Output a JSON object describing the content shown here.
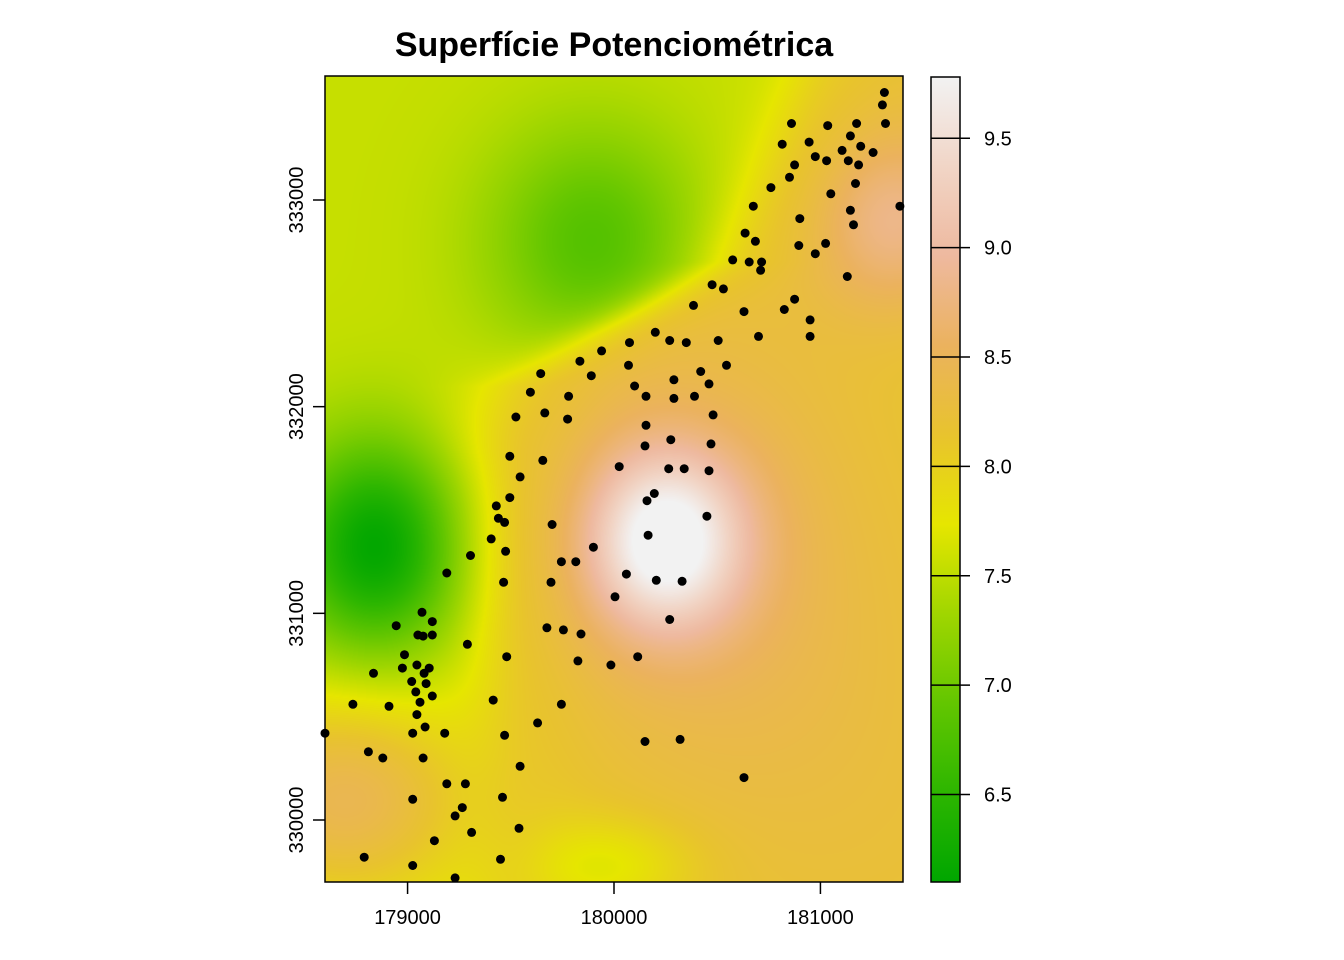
{
  "chart_data": {
    "type": "heatmap",
    "title": "Superfície Potenciométrica",
    "xlabel": "",
    "ylabel": "",
    "x_range": [
      178600,
      181400
    ],
    "y_range": [
      329700,
      333600
    ],
    "x_ticks": [
      179000,
      180000,
      181000
    ],
    "x_tick_labels": [
      "179000",
      "180000",
      "181000"
    ],
    "y_ticks": [
      330000,
      331000,
      332000,
      333000
    ],
    "y_tick_labels": [
      "330000",
      "331000",
      "332000",
      "333000"
    ],
    "colorbar": {
      "range": [
        6.1,
        9.78
      ],
      "ticks": [
        6.5,
        7.0,
        7.5,
        8.0,
        8.5,
        9.0,
        9.5
      ],
      "tick_labels": [
        "6.5",
        "7.0",
        "7.5",
        "8.0",
        "8.5",
        "9.0",
        "9.5"
      ],
      "colors": [
        "#00a600",
        "#2db600",
        "#63c600",
        "#a0d600",
        "#e6e600",
        "#e8c32e",
        "#ebb25e",
        "#eeb99f",
        "#f1d5c6",
        "#f2f2f2"
      ]
    },
    "surface_features": [
      {
        "kind": "peak",
        "x": 180250,
        "y": 331350,
        "value": 9.75
      },
      {
        "kind": "low",
        "x": 178850,
        "y": 331320,
        "value": 6.1
      },
      {
        "kind": "low",
        "x": 179900,
        "y": 332800,
        "value": 6.9
      },
      {
        "kind": "low",
        "x": 179900,
        "y": 329780,
        "value": 7.7
      },
      {
        "kind": "high",
        "x": 181200,
        "y": 333000,
        "value": 8.8
      }
    ],
    "wells": [
      [
        180165,
        331378
      ],
      [
        180160,
        331545
      ],
      [
        180195,
        331580
      ],
      [
        180025,
        331710
      ],
      [
        180265,
        331700
      ],
      [
        180340,
        331700
      ],
      [
        180460,
        331690
      ],
      [
        180450,
        331470
      ],
      [
        180480,
        331960
      ],
      [
        180460,
        332110
      ],
      [
        180390,
        332050
      ],
      [
        180290,
        332040
      ],
      [
        180155,
        331910
      ],
      [
        180150,
        331810
      ],
      [
        180275,
        331840
      ],
      [
        180470,
        331820
      ],
      [
        179900,
        331320
      ],
      [
        179815,
        331250
      ],
      [
        179745,
        331250
      ],
      [
        179700,
        331430
      ],
      [
        179695,
        331150
      ],
      [
        180005,
        331080
      ],
      [
        180060,
        331190
      ],
      [
        180205,
        331160
      ],
      [
        180330,
        331155
      ],
      [
        180270,
        330970
      ],
      [
        179675,
        330930
      ],
      [
        179755,
        330920
      ],
      [
        179840,
        330900
      ],
      [
        179825,
        330770
      ],
      [
        179985,
        330750
      ],
      [
        180115,
        330790
      ],
      [
        179745,
        330560
      ],
      [
        179630,
        330470
      ],
      [
        180150,
        330380
      ],
      [
        180320,
        330390
      ],
      [
        180630,
        330205
      ],
      [
        179495,
        331760
      ],
      [
        179495,
        331560
      ],
      [
        179545,
        331660
      ],
      [
        179525,
        331950
      ],
      [
        179595,
        332070
      ],
      [
        179645,
        332160
      ],
      [
        179665,
        331970
      ],
      [
        179655,
        331740
      ],
      [
        179780,
        332050
      ],
      [
        179775,
        331940
      ],
      [
        179835,
        332220
      ],
      [
        179890,
        332150
      ],
      [
        179940,
        332270
      ],
      [
        180075,
        332310
      ],
      [
        180070,
        332200
      ],
      [
        180100,
        332100
      ],
      [
        180270,
        332320
      ],
      [
        180200,
        332360
      ],
      [
        180350,
        332310
      ],
      [
        180420,
        332170
      ],
      [
        180505,
        332320
      ],
      [
        180545,
        332200
      ],
      [
        180290,
        332130
      ],
      [
        180385,
        332490
      ],
      [
        180475,
        332590
      ],
      [
        180530,
        332570
      ],
      [
        180635,
        332840
      ],
      [
        180575,
        332710
      ],
      [
        180655,
        332700
      ],
      [
        180685,
        332800
      ],
      [
        180675,
        332970
      ],
      [
        180715,
        332700
      ],
      [
        180710,
        332660
      ],
      [
        180630,
        332460
      ],
      [
        180700,
        332340
      ],
      [
        180760,
        333060
      ],
      [
        180850,
        333110
      ],
      [
        180815,
        333270
      ],
      [
        180860,
        333370
      ],
      [
        180875,
        333170
      ],
      [
        180945,
        333280
      ],
      [
        180975,
        333210
      ],
      [
        181030,
        333190
      ],
      [
        181035,
        333360
      ],
      [
        181105,
        333240
      ],
      [
        181145,
        333310
      ],
      [
        181195,
        333260
      ],
      [
        181175,
        333370
      ],
      [
        181185,
        333170
      ],
      [
        181255,
        333230
      ],
      [
        181310,
        333520
      ],
      [
        181315,
        333370
      ],
      [
        181410,
        333280
      ],
      [
        181385,
        332970
      ],
      [
        181160,
        332880
      ],
      [
        181145,
        332950
      ],
      [
        181135,
        333190
      ],
      [
        181170,
        333080
      ],
      [
        181050,
        333030
      ],
      [
        180900,
        332910
      ],
      [
        180895,
        332780
      ],
      [
        181025,
        332790
      ],
      [
        180975,
        332740
      ],
      [
        181130,
        332630
      ],
      [
        180825,
        332470
      ],
      [
        180875,
        332520
      ],
      [
        180950,
        332420
      ],
      [
        180950,
        332340
      ],
      [
        180155,
        332050
      ],
      [
        179190,
        331195
      ],
      [
        179305,
        331280
      ],
      [
        179405,
        331360
      ],
      [
        179440,
        331460
      ],
      [
        179470,
        331440
      ],
      [
        179430,
        331520
      ],
      [
        179475,
        331300
      ],
      [
        179465,
        331150
      ],
      [
        179290,
        330850
      ],
      [
        179120,
        330960
      ],
      [
        179070,
        331005
      ],
      [
        179075,
        330890
      ],
      [
        179120,
        330895
      ],
      [
        179050,
        330895
      ],
      [
        178945,
        330940
      ],
      [
        178985,
        330800
      ],
      [
        179045,
        330750
      ],
      [
        179080,
        330710
      ],
      [
        179105,
        330735
      ],
      [
        178975,
        330735
      ],
      [
        179020,
        330670
      ],
      [
        179040,
        330620
      ],
      [
        179060,
        330570
      ],
      [
        179090,
        330660
      ],
      [
        179120,
        330600
      ],
      [
        179045,
        330510
      ],
      [
        179085,
        330450
      ],
      [
        179025,
        330420
      ],
      [
        178910,
        330550
      ],
      [
        178835,
        330710
      ],
      [
        178735,
        330560
      ],
      [
        178810,
        330330
      ],
      [
        178880,
        330300
      ],
      [
        178600,
        330420
      ],
      [
        179075,
        330300
      ],
      [
        179180,
        330420
      ],
      [
        179190,
        330175
      ],
      [
        179280,
        330175
      ],
      [
        179265,
        330060
      ],
      [
        179230,
        330020
      ],
      [
        179130,
        329900
      ],
      [
        179025,
        329780
      ],
      [
        178790,
        329820
      ],
      [
        179025,
        330100
      ],
      [
        179310,
        329940
      ],
      [
        179415,
        330580
      ],
      [
        179480,
        330790
      ],
      [
        179470,
        330410
      ],
      [
        179545,
        330260
      ],
      [
        179460,
        330110
      ],
      [
        179540,
        329960
      ],
      [
        179450,
        329810
      ],
      [
        179230,
        329720
      ],
      [
        181300,
        333460
      ],
      [
        181060,
        333620
      ]
    ]
  }
}
